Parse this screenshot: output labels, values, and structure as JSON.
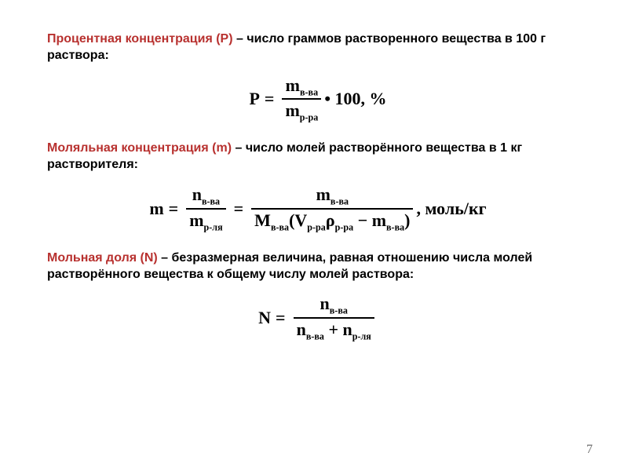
{
  "defs": {
    "percent": {
      "term": "Процентная концентрация (Р)",
      "rest": " – число граммов растворенного вещества в 100 г раствора:"
    },
    "molal": {
      "term": "Моляльная концентрация (m)",
      "rest": " – число молей растворённого вещества в 1 кг растворителя:"
    },
    "molefrac": {
      "term": "Мольная доля (N)",
      "rest": " – безразмерная величина, равная отношению числа молей растворённого вещества к общему числу молей раствора:"
    }
  },
  "formulas": {
    "P": {
      "lhs": "P",
      "num": "m",
      "num_sub": "в-ва",
      "den": "m",
      "den_sub": "р-ра",
      "tail": " • 100, %"
    },
    "m": {
      "lhs": "m",
      "f1": {
        "num": "n",
        "num_sub": "в-ва",
        "den": "m",
        "den_sub": "р-ля"
      },
      "f2_num": {
        "sym": "m",
        "sub": "в-ва"
      },
      "f2_den": {
        "M": "M",
        "M_sub": "в-ва",
        "open": "(",
        "V": "V",
        "V_sub": "р-ра",
        "rho": "ρ",
        "rho_sub": "р-ра",
        "minus": " − ",
        "m2": "m",
        "m2_sub": "в-ва",
        "close": ")"
      },
      "unit": ", моль/кг"
    },
    "N": {
      "lhs": "N",
      "num": {
        "sym": "n",
        "sub": "в-ва"
      },
      "den": {
        "s1": "n",
        "sub1": "в-ва",
        "plus": " + ",
        "s2": "n",
        "sub2": "р-ля"
      }
    }
  },
  "style": {
    "term_color": "#b8312f",
    "text_color": "#000000",
    "body_fontsize": 16,
    "formula_fontsize": 22,
    "bg": "#ffffff"
  },
  "page_number": "7"
}
